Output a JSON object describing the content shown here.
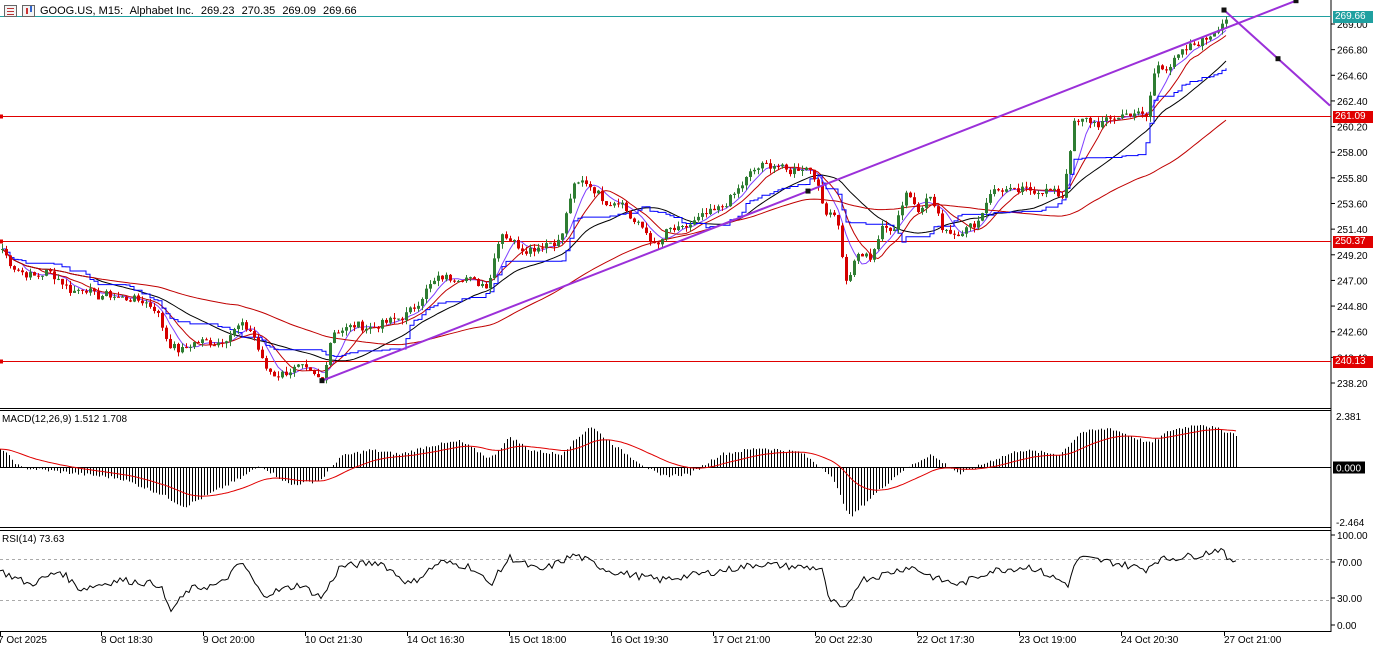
{
  "header": {
    "symbol": "GOOG.US, M15:",
    "name": "Alphabet Inc.",
    "open": "269.23",
    "high": "270.35",
    "low": "269.09",
    "close": "269.66"
  },
  "icons": [
    "menu-icon",
    "chart-bars-icon"
  ],
  "colors": {
    "bull": "#2e7d32",
    "bear": "#d50000",
    "trendline": "#9b30d9",
    "hline": "#e00000",
    "bid": "#20a0a0",
    "ma_black": "#000000",
    "ma_blue": "#0000ff",
    "ma_red": "#c00000",
    "ma_violet": "#8040ff"
  },
  "price_axis": {
    "ticks": [
      "269.00",
      "266.80",
      "264.60",
      "262.40",
      "260.20",
      "258.00",
      "255.80",
      "253.60",
      "251.40",
      "249.20",
      "247.00",
      "244.80",
      "242.60",
      "240.40",
      "238.20"
    ]
  },
  "current_price_label": "269.66",
  "horizontal_levels": [
    {
      "label": "261.09",
      "value": 261.09
    },
    {
      "label": "250.37",
      "value": 250.37
    },
    {
      "label": "240.13",
      "value": 240.13
    }
  ],
  "macd": {
    "title": "MACD(12,26,9) 1.512 1.708",
    "ticks": [
      "2.381",
      "0.000",
      "-2.464"
    ]
  },
  "rsi": {
    "title": "RSI(14) 73.63",
    "ticks": [
      "100.00",
      "70.00",
      "30.00",
      "0.00"
    ]
  },
  "time_axis": [
    "7 Oct 2025",
    "8 Oct 18:30",
    "9 Oct 20:00",
    "10 Oct 21:30",
    "14 Oct 16:30",
    "15 Oct 18:00",
    "16 Oct 19:30",
    "17 Oct 21:00",
    "20 Oct 22:30",
    "22 Oct 17:30",
    "23 Oct 19:00",
    "24 Oct 20:30",
    "27 Oct 21:00"
  ],
  "chart_data": {
    "type": "candlestick",
    "timeframe": "M15",
    "symbol": "GOOG.US",
    "ylim": [
      236.8,
      270.8
    ],
    "close_path": [
      [
        0,
        250.0
      ],
      [
        12,
        248.2
      ],
      [
        24,
        247.6
      ],
      [
        36,
        247.3
      ],
      [
        48,
        247.8
      ],
      [
        60,
        247.0
      ],
      [
        72,
        246.0
      ],
      [
        84,
        246.4
      ],
      [
        96,
        245.6
      ],
      [
        108,
        245.8
      ],
      [
        120,
        245.5
      ],
      [
        132,
        245.4
      ],
      [
        144,
        245.2
      ],
      [
        156,
        244.5
      ],
      [
        168,
        241.6
      ],
      [
        180,
        240.9
      ],
      [
        192,
        241.6
      ],
      [
        204,
        241.8
      ],
      [
        216,
        241.6
      ],
      [
        228,
        242.2
      ],
      [
        240,
        243.2
      ],
      [
        252,
        242.6
      ],
      [
        264,
        239.6
      ],
      [
        276,
        238.8
      ],
      [
        288,
        239.2
      ],
      [
        300,
        239.6
      ],
      [
        312,
        238.9
      ],
      [
        322,
        238.4
      ],
      [
        332,
        242.6
      ],
      [
        344,
        242.8
      ],
      [
        356,
        243.2
      ],
      [
        368,
        242.9
      ],
      [
        380,
        243.2
      ],
      [
        392,
        243.6
      ],
      [
        404,
        243.9
      ],
      [
        416,
        244.9
      ],
      [
        428,
        246.4
      ],
      [
        440,
        247.3
      ],
      [
        452,
        247.2
      ],
      [
        464,
        247.3
      ],
      [
        476,
        246.8
      ],
      [
        488,
        246.6
      ],
      [
        500,
        251.2
      ],
      [
        512,
        250.4
      ],
      [
        524,
        249.6
      ],
      [
        536,
        249.8
      ],
      [
        548,
        250.3
      ],
      [
        560,
        250.3
      ],
      [
        572,
        254.9
      ],
      [
        584,
        255.6
      ],
      [
        596,
        254.6
      ],
      [
        608,
        253.6
      ],
      [
        620,
        253.9
      ],
      [
        632,
        252.1
      ],
      [
        644,
        251.4
      ],
      [
        656,
        249.7
      ],
      [
        668,
        251.4
      ],
      [
        680,
        251.3
      ],
      [
        692,
        251.9
      ],
      [
        704,
        252.6
      ],
      [
        716,
        253.0
      ],
      [
        728,
        253.8
      ],
      [
        740,
        255.0
      ],
      [
        752,
        256.4
      ],
      [
        764,
        256.9
      ],
      [
        776,
        256.9
      ],
      [
        788,
        256.3
      ],
      [
        800,
        256.7
      ],
      [
        812,
        256.6
      ],
      [
        824,
        253.0
      ],
      [
        836,
        252.8
      ],
      [
        846,
        246.8
      ],
      [
        858,
        249.2
      ],
      [
        870,
        249.0
      ],
      [
        882,
        251.4
      ],
      [
        894,
        251.6
      ],
      [
        906,
        254.6
      ],
      [
        918,
        253.2
      ],
      [
        930,
        254.2
      ],
      [
        942,
        251.6
      ],
      [
        954,
        251.0
      ],
      [
        966,
        251.4
      ],
      [
        978,
        252.1
      ],
      [
        990,
        254.6
      ],
      [
        1002,
        254.8
      ],
      [
        1014,
        254.6
      ],
      [
        1026,
        254.8
      ],
      [
        1038,
        254.7
      ],
      [
        1050,
        254.7
      ],
      [
        1062,
        254.2
      ],
      [
        1074,
        260.4
      ],
      [
        1086,
        260.8
      ],
      [
        1098,
        260.4
      ],
      [
        1110,
        260.8
      ],
      [
        1122,
        261.2
      ],
      [
        1134,
        261.4
      ],
      [
        1146,
        261.0
      ],
      [
        1156,
        265.6
      ],
      [
        1168,
        265.2
      ],
      [
        1180,
        266.4
      ],
      [
        1192,
        267.2
      ],
      [
        1204,
        267.6
      ],
      [
        1216,
        268.6
      ],
      [
        1228,
        269.66
      ]
    ],
    "macd_path": [
      [
        0,
        0.9
      ],
      [
        20,
        0.0
      ],
      [
        60,
        -0.2
      ],
      [
        120,
        -0.5
      ],
      [
        160,
        -1.2
      ],
      [
        184,
        -1.8
      ],
      [
        210,
        -1.2
      ],
      [
        240,
        -0.5
      ],
      [
        260,
        0.1
      ],
      [
        290,
        -0.8
      ],
      [
        320,
        -0.6
      ],
      [
        340,
        0.5
      ],
      [
        370,
        0.8
      ],
      [
        400,
        0.6
      ],
      [
        430,
        1.0
      ],
      [
        460,
        1.2
      ],
      [
        490,
        0.4
      ],
      [
        510,
        1.4
      ],
      [
        530,
        0.8
      ],
      [
        560,
        0.6
      ],
      [
        590,
        1.9
      ],
      [
        620,
        0.8
      ],
      [
        660,
        -0.4
      ],
      [
        690,
        -0.3
      ],
      [
        720,
        0.6
      ],
      [
        760,
        0.9
      ],
      [
        800,
        0.7
      ],
      [
        830,
        -0.3
      ],
      [
        850,
        -2.3
      ],
      [
        870,
        -1.4
      ],
      [
        900,
        -0.2
      ],
      [
        930,
        0.6
      ],
      [
        960,
        -0.3
      ],
      [
        990,
        0.3
      ],
      [
        1020,
        0.8
      ],
      [
        1060,
        0.6
      ],
      [
        1080,
        1.6
      ],
      [
        1110,
        1.8
      ],
      [
        1150,
        1.1
      ],
      [
        1170,
        1.7
      ],
      [
        1200,
        2.0
      ],
      [
        1237,
        1.5
      ]
    ],
    "rsi_path": [
      [
        0,
        60
      ],
      [
        30,
        45
      ],
      [
        60,
        60
      ],
      [
        80,
        40
      ],
      [
        120,
        50
      ],
      [
        160,
        45
      ],
      [
        170,
        15
      ],
      [
        190,
        40
      ],
      [
        220,
        45
      ],
      [
        242,
        70
      ],
      [
        262,
        33
      ],
      [
        300,
        45
      ],
      [
        322,
        30
      ],
      [
        340,
        65
      ],
      [
        380,
        70
      ],
      [
        410,
        45
      ],
      [
        440,
        70
      ],
      [
        470,
        65
      ],
      [
        490,
        45
      ],
      [
        510,
        75
      ],
      [
        540,
        60
      ],
      [
        575,
        78
      ],
      [
        610,
        60
      ],
      [
        660,
        50
      ],
      [
        690,
        55
      ],
      [
        720,
        60
      ],
      [
        760,
        68
      ],
      [
        790,
        65
      ],
      [
        822,
        63
      ],
      [
        828,
        30
      ],
      [
        845,
        15
      ],
      [
        860,
        50
      ],
      [
        880,
        55
      ],
      [
        910,
        65
      ],
      [
        940,
        50
      ],
      [
        960,
        45
      ],
      [
        990,
        60
      ],
      [
        1030,
        65
      ],
      [
        1068,
        45
      ],
      [
        1078,
        75
      ],
      [
        1110,
        70
      ],
      [
        1146,
        62
      ],
      [
        1156,
        72
      ],
      [
        1200,
        78
      ],
      [
        1220,
        85
      ],
      [
        1230,
        70
      ],
      [
        1237,
        73.63
      ]
    ],
    "trendline": {
      "from": {
        "x": 322,
        "y": 238.4
      },
      "to": {
        "x": 1296,
        "y": 271.0
      }
    },
    "projection": {
      "from": {
        "x": 1224,
        "y": 270.2
      },
      "to": {
        "x": 1330,
        "y": 262.0
      }
    }
  }
}
